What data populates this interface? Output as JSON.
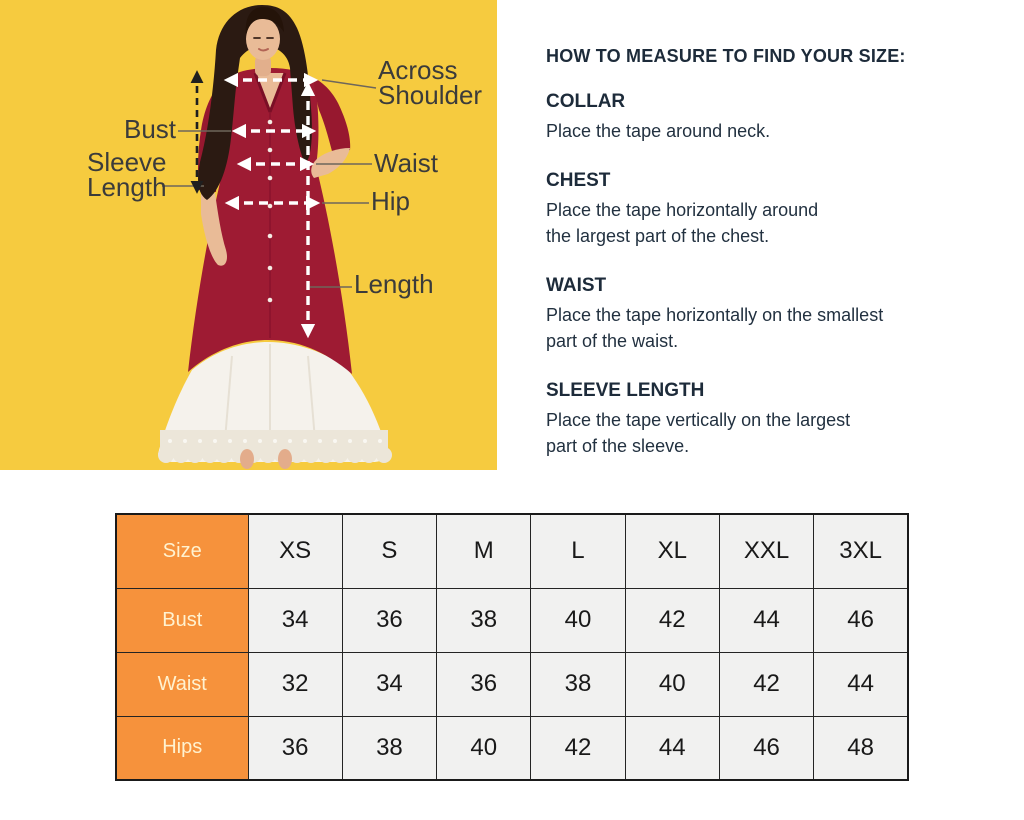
{
  "colors": {
    "panel_yellow": "#F6CB3F",
    "dress_maroon": "#9E1B33",
    "accent_orange": "#F6923C",
    "heading_navy": "#1D2B3A",
    "diagram_label_dark": "#3B3B3B",
    "table_cell_bg": "#F1F1F0",
    "table_label_text": "#FFF2D0",
    "skirt_white": "#F5F2EC"
  },
  "diagram": {
    "labels": {
      "across_shoulder": "Across Shoulder",
      "bust": "Bust",
      "sleeve_length": "Sleeve Length",
      "waist": "Waist",
      "hip": "Hip",
      "length": "Length"
    }
  },
  "measure_guide": {
    "heading": "HOW TO MEASURE TO FIND YOUR SIZE:",
    "sections": [
      {
        "title": "COLLAR",
        "lines": [
          "Place the tape around neck."
        ]
      },
      {
        "title": "CHEST",
        "lines": [
          "Place the tape horizontally around",
          "the largest part of the chest."
        ]
      },
      {
        "title": "WAIST",
        "lines": [
          "Place the tape horizontally on the smallest",
          "part of the waist."
        ]
      },
      {
        "title": "SLEEVE LENGTH",
        "lines": [
          "Place the tape vertically on the largest",
          "part of the sleeve."
        ]
      }
    ]
  },
  "table": {
    "header": [
      "Size",
      "XS",
      "S",
      "M",
      "L",
      "XL",
      "XXL",
      "3XL"
    ],
    "rows": [
      {
        "label": "Bust",
        "values": [
          "34",
          "36",
          "38",
          "40",
          "42",
          "44",
          "46"
        ]
      },
      {
        "label": "Waist",
        "values": [
          "32",
          "34",
          "36",
          "38",
          "40",
          "42",
          "44"
        ]
      },
      {
        "label": "Hips",
        "values": [
          "36",
          "38",
          "40",
          "42",
          "44",
          "46",
          "48"
        ]
      }
    ]
  }
}
